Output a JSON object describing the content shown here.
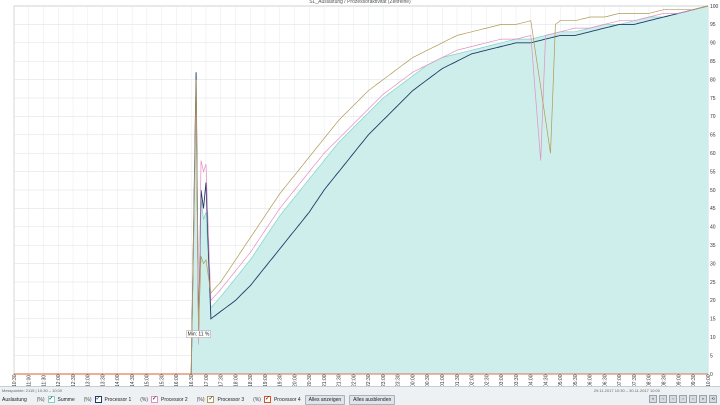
{
  "window": {
    "title": "SL_Auslastung / Prozessoraktivität (Zeitreihe)"
  },
  "chart_data": {
    "type": "area",
    "ylim": [
      0,
      100
    ],
    "yticks": [
      0,
      5,
      10,
      15,
      20,
      25,
      30,
      35,
      40,
      45,
      50,
      55,
      60,
      65,
      70,
      75,
      80,
      85,
      90,
      95,
      100
    ],
    "xticks": [
      "10:30",
      "11:00",
      "11:30",
      "12:00",
      "12:30",
      "13:00",
      "13:30",
      "14:00",
      "14:30",
      "15:00",
      "15:30",
      "16:00",
      "16:30",
      "17:00",
      "17:30",
      "18:00",
      "18:30",
      "19:00",
      "19:30",
      "20:00",
      "20:30",
      "21:00",
      "21:30",
      "22:00",
      "22:30",
      "23:00",
      "23:30",
      "00:00",
      "00:30",
      "01:00",
      "01:30",
      "02:00",
      "02:30",
      "03:00",
      "03:30",
      "04:00",
      "04:30",
      "05:00",
      "05:30",
      "06:00",
      "06:30",
      "07:00",
      "07:30",
      "08:00",
      "08:30",
      "09:00",
      "09:30",
      "10:00"
    ],
    "grid": true,
    "annotation": {
      "text": "Min: 11 %",
      "x": "16:45",
      "y": 11
    },
    "series": [
      {
        "name": "Summe",
        "color": "#7fd4cc",
        "fill": "#cdeeea",
        "points": [
          [
            "10:30",
            0
          ],
          [
            "16:30",
            0
          ],
          [
            "16:40",
            72
          ],
          [
            "16:45",
            12
          ],
          [
            "16:50",
            48
          ],
          [
            "16:55",
            42
          ],
          [
            "17:00",
            44
          ],
          [
            "17:10",
            18
          ],
          [
            "17:30",
            21
          ],
          [
            "18:00",
            26
          ],
          [
            "18:30",
            31
          ],
          [
            "19:00",
            37
          ],
          [
            "19:30",
            43
          ],
          [
            "20:00",
            48
          ],
          [
            "20:30",
            53
          ],
          [
            "21:00",
            58
          ],
          [
            "21:30",
            63
          ],
          [
            "22:00",
            67
          ],
          [
            "22:30",
            71
          ],
          [
            "23:00",
            75
          ],
          [
            "23:30",
            78
          ],
          [
            "00:00",
            81
          ],
          [
            "00:30",
            84
          ],
          [
            "01:00",
            86
          ],
          [
            "01:30",
            87
          ],
          [
            "02:00",
            88
          ],
          [
            "02:30",
            89
          ],
          [
            "03:00",
            90
          ],
          [
            "03:30",
            91
          ],
          [
            "04:00",
            91
          ],
          [
            "04:30",
            92
          ],
          [
            "05:00",
            93
          ],
          [
            "05:30",
            93
          ],
          [
            "06:00",
            94
          ],
          [
            "06:30",
            95
          ],
          [
            "07:00",
            95
          ],
          [
            "07:30",
            96
          ],
          [
            "08:00",
            97
          ],
          [
            "08:30",
            97
          ],
          [
            "09:00",
            98
          ],
          [
            "09:30",
            99
          ],
          [
            "10:00",
            100
          ]
        ]
      },
      {
        "name": "Processor 1",
        "color": "#1f3a6b",
        "points": [
          [
            "10:30",
            0
          ],
          [
            "16:30",
            0
          ],
          [
            "16:40",
            82
          ],
          [
            "16:45",
            11
          ],
          [
            "16:50",
            50
          ],
          [
            "16:55",
            45
          ],
          [
            "17:00",
            52
          ],
          [
            "17:10",
            15
          ],
          [
            "17:30",
            17
          ],
          [
            "18:00",
            20
          ],
          [
            "18:30",
            24
          ],
          [
            "19:00",
            29
          ],
          [
            "19:30",
            34
          ],
          [
            "20:00",
            39
          ],
          [
            "20:30",
            44
          ],
          [
            "21:00",
            50
          ],
          [
            "21:30",
            55
          ],
          [
            "22:00",
            60
          ],
          [
            "22:30",
            65
          ],
          [
            "23:00",
            69
          ],
          [
            "23:30",
            73
          ],
          [
            "00:00",
            77
          ],
          [
            "00:30",
            80
          ],
          [
            "01:00",
            83
          ],
          [
            "01:30",
            85
          ],
          [
            "02:00",
            87
          ],
          [
            "02:30",
            88
          ],
          [
            "03:00",
            89
          ],
          [
            "03:30",
            90
          ],
          [
            "04:00",
            90
          ],
          [
            "04:30",
            91
          ],
          [
            "05:00",
            92
          ],
          [
            "05:30",
            92
          ],
          [
            "06:00",
            93
          ],
          [
            "06:30",
            94
          ],
          [
            "07:00",
            95
          ],
          [
            "07:30",
            95
          ],
          [
            "08:00",
            96
          ],
          [
            "08:30",
            97
          ],
          [
            "09:00",
            98
          ],
          [
            "09:30",
            99
          ],
          [
            "10:00",
            100
          ]
        ]
      },
      {
        "name": "Processor 2",
        "color": "#e58fc0",
        "points": [
          [
            "10:30",
            0
          ],
          [
            "16:30",
            0
          ],
          [
            "16:40",
            75
          ],
          [
            "16:45",
            8
          ],
          [
            "16:50",
            58
          ],
          [
            "16:55",
            55
          ],
          [
            "17:00",
            57
          ],
          [
            "17:10",
            20
          ],
          [
            "17:30",
            23
          ],
          [
            "18:00",
            28
          ],
          [
            "18:30",
            33
          ],
          [
            "19:00",
            39
          ],
          [
            "19:30",
            45
          ],
          [
            "20:00",
            50
          ],
          [
            "20:30",
            55
          ],
          [
            "21:00",
            60
          ],
          [
            "21:30",
            64
          ],
          [
            "22:00",
            68
          ],
          [
            "22:30",
            72
          ],
          [
            "23:00",
            76
          ],
          [
            "23:30",
            79
          ],
          [
            "00:00",
            82
          ],
          [
            "00:30",
            84
          ],
          [
            "01:00",
            86
          ],
          [
            "01:30",
            88
          ],
          [
            "02:00",
            89
          ],
          [
            "02:30",
            90
          ],
          [
            "03:00",
            91
          ],
          [
            "03:30",
            91
          ],
          [
            "04:00",
            92
          ],
          [
            "04:20",
            58
          ],
          [
            "04:30",
            92
          ],
          [
            "05:00",
            93
          ],
          [
            "05:30",
            94
          ],
          [
            "06:00",
            94
          ],
          [
            "06:30",
            95
          ],
          [
            "07:00",
            96
          ],
          [
            "07:30",
            96
          ],
          [
            "08:00",
            97
          ],
          [
            "08:30",
            98
          ],
          [
            "09:00",
            98
          ],
          [
            "09:30",
            99
          ],
          [
            "10:00",
            100
          ]
        ]
      },
      {
        "name": "Processor 3",
        "color": "#b09a55",
        "points": [
          [
            "10:30",
            0
          ],
          [
            "16:30",
            0
          ],
          [
            "16:40",
            80
          ],
          [
            "16:45",
            12
          ],
          [
            "16:50",
            32
          ],
          [
            "16:55",
            30
          ],
          [
            "17:00",
            31
          ],
          [
            "17:10",
            22
          ],
          [
            "17:30",
            25
          ],
          [
            "18:00",
            31
          ],
          [
            "18:30",
            37
          ],
          [
            "19:00",
            43
          ],
          [
            "19:30",
            49
          ],
          [
            "20:00",
            54
          ],
          [
            "20:30",
            59
          ],
          [
            "21:00",
            64
          ],
          [
            "21:30",
            69
          ],
          [
            "22:00",
            73
          ],
          [
            "22:30",
            77
          ],
          [
            "23:00",
            80
          ],
          [
            "23:30",
            83
          ],
          [
            "00:00",
            86
          ],
          [
            "00:30",
            88
          ],
          [
            "01:00",
            90
          ],
          [
            "01:30",
            92
          ],
          [
            "02:00",
            93
          ],
          [
            "02:30",
            94
          ],
          [
            "03:00",
            95
          ],
          [
            "03:30",
            95
          ],
          [
            "04:00",
            96
          ],
          [
            "04:40",
            60
          ],
          [
            "04:50",
            95
          ],
          [
            "05:00",
            96
          ],
          [
            "05:30",
            96
          ],
          [
            "06:00",
            97
          ],
          [
            "06:30",
            97
          ],
          [
            "07:00",
            98
          ],
          [
            "07:30",
            98
          ],
          [
            "08:00",
            98
          ],
          [
            "08:30",
            99
          ],
          [
            "09:00",
            99
          ],
          [
            "09:30",
            99
          ],
          [
            "10:00",
            100
          ]
        ]
      },
      {
        "name": "Processor 4",
        "color": "#e0501e",
        "points": [
          [
            "10:30",
            0
          ],
          [
            "16:30",
            0
          ],
          [
            "10:00",
            0
          ]
        ]
      }
    ]
  },
  "footer": {
    "status_left": "Messpunkte: 2115 | 10:30 – 10:00",
    "status_right": "29.11.2017 10:30 – 30.11.2017 10:00",
    "item_label_prefix": "(%)",
    "series_toggle_first": "Auslastung",
    "show_all": "Alles anzeigen",
    "hide_all": "Alles ausblenden",
    "nav": [
      "«",
      "‹",
      "‹",
      "›",
      "›",
      "»",
      "⟲"
    ]
  }
}
